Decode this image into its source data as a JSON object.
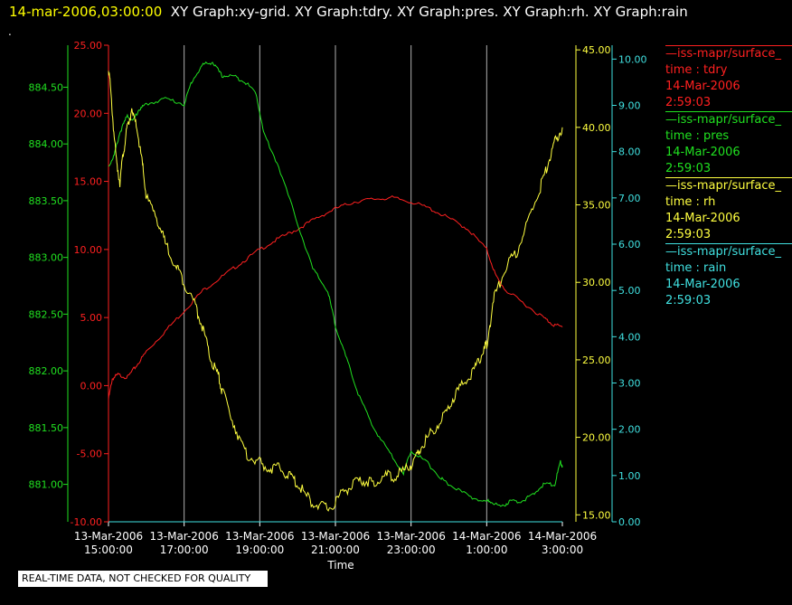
{
  "header": {
    "timestamp": "14-mar-2006,03:00:00",
    "graphs": "XY Graph:xy-grid.  XY Graph:tdry.  XY Graph:pres.  XY Graph:rh.  XY Graph:rain",
    "dot": "."
  },
  "legend": [
    {
      "source": "—iss-mapr/surface_",
      "var": "time : tdry",
      "date": "14-Mar-2006",
      "time": "2:59:03",
      "color": "#ff2020"
    },
    {
      "source": "—iss-mapr/surface_",
      "var": "time : pres",
      "date": "14-Mar-2006",
      "time": "2:59:03",
      "color": "#20e020"
    },
    {
      "source": "—iss-mapr/surface_",
      "var": "time : rh",
      "date": "14-Mar-2006",
      "time": "2:59:03",
      "color": "#ffff40"
    },
    {
      "source": "—iss-mapr/surface_",
      "var": "time : rain",
      "date": "14-Mar-2006",
      "time": "2:59:03",
      "color": "#40e0e0"
    }
  ],
  "notice": "REAL-TIME DATA, NOT CHECKED FOR QUALITY",
  "chart_data": {
    "type": "line",
    "xlabel": "Time",
    "x_ticks": [
      {
        "l1": "13-Mar-2006",
        "l2": "15:00:00",
        "h": 15
      },
      {
        "l1": "13-Mar-2006",
        "l2": "17:00:00",
        "h": 17
      },
      {
        "l1": "13-Mar-2006",
        "l2": "19:00:00",
        "h": 19
      },
      {
        "l1": "13-Mar-2006",
        "l2": "21:00:00",
        "h": 21
      },
      {
        "l1": "13-Mar-2006",
        "l2": "23:00:00",
        "h": 23
      },
      {
        "l1": "14-Mar-2006",
        "l2": "1:00:00",
        "h": 25
      },
      {
        "l1": "14-Mar-2006",
        "l2": "3:00:00",
        "h": 27
      }
    ],
    "xlim_hours": [
      15,
      27
    ],
    "grid": true,
    "axes": {
      "pres": {
        "color": "#20e020",
        "ylim": [
          880.67,
          884.87
        ],
        "ticks": [
          "881.00",
          "881.50",
          "882.00",
          "882.50",
          "883.00",
          "883.50",
          "884.00",
          "884.50"
        ]
      },
      "tdry": {
        "color": "#ff2020",
        "ylim": [
          -10,
          25
        ],
        "ticks": [
          "-10.00",
          "-5.00",
          "0.00",
          "5.00",
          "10.00",
          "15.00",
          "20.00",
          "25.00"
        ]
      },
      "rh": {
        "color": "#ffff40",
        "ylim": [
          14.55,
          45.3
        ],
        "ticks": [
          "15.00",
          "20.00",
          "25.00",
          "30.00",
          "35.00",
          "40.00",
          "45.00"
        ]
      },
      "rain": {
        "color": "#40e0e0",
        "ylim": [
          0,
          10.3
        ],
        "ticks": [
          "0.00",
          "1.00",
          "2.00",
          "3.00",
          "4.00",
          "5.00",
          "6.00",
          "7.00",
          "8.00",
          "9.00",
          "10.00"
        ]
      }
    },
    "series": [
      {
        "name": "tdry",
        "axis": "tdry",
        "color": "#ff2020",
        "x": [
          15.0,
          15.1,
          15.25,
          15.5,
          15.75,
          16.0,
          16.5,
          17.0,
          17.5,
          18.0,
          18.5,
          19.0,
          19.5,
          20.0,
          20.5,
          21.0,
          21.5,
          22.0,
          22.5,
          23.0,
          23.5,
          24.0,
          24.5,
          25.0,
          25.25,
          25.5,
          26.0,
          26.5,
          26.75,
          27.0
        ],
        "y": [
          -1.0,
          0.5,
          0.8,
          0.6,
          1.5,
          2.5,
          4.0,
          5.5,
          7.0,
          8.0,
          9.0,
          10.0,
          10.8,
          11.5,
          12.3,
          13.0,
          13.5,
          13.7,
          13.8,
          13.5,
          13.0,
          12.3,
          11.5,
          10.0,
          8.0,
          7.0,
          6.0,
          5.0,
          4.5,
          4.3
        ]
      },
      {
        "name": "pres",
        "axis": "pres",
        "color": "#20e020",
        "x": [
          15.0,
          15.15,
          15.3,
          15.5,
          15.65,
          15.8,
          16.0,
          16.5,
          17.0,
          17.2,
          17.5,
          17.75,
          18.0,
          18.3,
          18.6,
          18.9,
          19.1,
          19.5,
          20.0,
          20.4,
          20.8,
          21.0,
          21.3,
          21.6,
          22.0,
          22.4,
          22.8,
          23.0,
          23.4,
          23.8,
          24.0,
          24.5,
          24.9,
          25.1,
          25.4,
          25.6,
          25.9,
          26.2,
          26.5,
          26.8,
          26.95,
          27.0
        ],
        "y": [
          883.8,
          883.9,
          884.1,
          884.25,
          884.2,
          884.3,
          884.35,
          884.4,
          884.35,
          884.55,
          884.7,
          884.72,
          884.6,
          884.6,
          884.55,
          884.45,
          884.1,
          883.8,
          883.3,
          882.9,
          882.7,
          882.4,
          882.1,
          881.8,
          881.5,
          881.3,
          881.1,
          881.3,
          881.2,
          881.05,
          881.0,
          880.9,
          880.85,
          880.85,
          880.8,
          880.85,
          880.85,
          880.9,
          881.0,
          881.0,
          881.2,
          881.15
        ]
      },
      {
        "name": "rh",
        "axis": "rh",
        "color": "#ffff40",
        "x": [
          15.0,
          15.1,
          15.2,
          15.3,
          15.4,
          15.5,
          15.6,
          15.75,
          15.9,
          16.0,
          16.3,
          16.5,
          16.8,
          17.0,
          17.3,
          17.5,
          17.7,
          17.9,
          18.0,
          18.3,
          18.6,
          18.9,
          19.2,
          19.5,
          19.8,
          20.0,
          20.3,
          20.6,
          20.9,
          21.2,
          21.5,
          21.8,
          22.0,
          22.3,
          22.6,
          22.9,
          23.1,
          23.3,
          23.6,
          23.9,
          24.1,
          24.4,
          24.7,
          24.9,
          25.0,
          25.2,
          25.5,
          25.8,
          26.1,
          26.4,
          26.6,
          26.8,
          27.0
        ],
        "y": [
          44.0,
          41.0,
          38.0,
          36.5,
          38.5,
          40.0,
          41.0,
          40.0,
          37.5,
          35.5,
          34.0,
          32.5,
          31.0,
          30.0,
          28.5,
          27.0,
          25.0,
          24.0,
          23.0,
          21.0,
          19.0,
          18.5,
          18.0,
          18.0,
          17.5,
          17.0,
          16.0,
          15.5,
          15.5,
          16.5,
          17.0,
          17.2,
          17.0,
          17.5,
          17.5,
          18.0,
          18.5,
          19.5,
          20.5,
          21.5,
          22.5,
          23.5,
          24.5,
          25.5,
          26.0,
          29.0,
          31.0,
          32.0,
          34.0,
          36.0,
          37.5,
          39.0,
          40.0
        ]
      },
      {
        "name": "rain",
        "axis": "rain",
        "color": "#40e0e0",
        "x": [
          15.0,
          27.0
        ],
        "y": [
          0.0,
          0.0
        ]
      }
    ]
  }
}
